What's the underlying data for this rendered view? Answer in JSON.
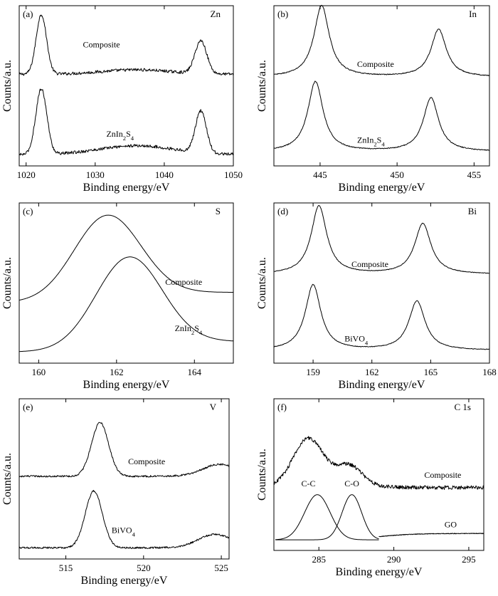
{
  "chart_data": [
    {
      "panel": "(a)",
      "element": "Zn",
      "type": "line",
      "xlabel": "Binding energy/eV",
      "ylabel": "Counts/a.u.",
      "xlim": [
        1019,
        1050
      ],
      "ticks": [
        1020,
        1030,
        1040,
        1050
      ],
      "tick_labels": [
        "1020",
        "1030",
        "1040",
        "1050"
      ],
      "series": [
        {
          "name": "Composite",
          "baseline": 0.54,
          "noise": 0.01,
          "hump": {
            "center": 1036,
            "sigma": 5,
            "amp": 0.03
          },
          "peaks": [
            {
              "center": 1022.2,
              "sigma": 0.75,
              "amp": 0.4
            },
            {
              "center": 1045.3,
              "sigma": 0.85,
              "amp": 0.22
            }
          ],
          "label_x": 1030.9,
          "label_y": 0.72
        },
        {
          "name": "ZnIn2S4",
          "baseline": 0.0,
          "noise": 0.01,
          "hump": {
            "center": 1036,
            "sigma": 5.5,
            "amp": 0.06
          },
          "peaks": [
            {
              "center": 1022.2,
              "sigma": 0.8,
              "amp": 0.44
            },
            {
              "center": 1045.3,
              "sigma": 0.8,
              "amp": 0.28
            }
          ],
          "label_x": 1033.6,
          "label_y": 0.12
        }
      ]
    },
    {
      "panel": "(b)",
      "element": "In",
      "type": "line",
      "xlabel": "Binding energy/eV",
      "ylabel": "Counts/a.u.",
      "xlim": [
        442,
        456
      ],
      "ticks": [
        445,
        450,
        455
      ],
      "tick_labels": [
        "445",
        "450",
        "455"
      ],
      "series": [
        {
          "name": "Composite",
          "baseline": 0.52,
          "noise": 0.003,
          "peaks": [
            {
              "center": 445.1,
              "sigma": 0.6,
              "amp": 0.48,
              "shape": "lor"
            },
            {
              "center": 452.7,
              "sigma": 0.6,
              "amp": 0.32,
              "shape": "lor"
            }
          ],
          "label_x": 448.6,
          "label_y": 0.59
        },
        {
          "name": "ZnIn2S4",
          "baseline": 0.02,
          "noise": 0.003,
          "peaks": [
            {
              "center": 444.7,
              "sigma": 0.6,
              "amp": 0.47,
              "shape": "lor"
            },
            {
              "center": 452.2,
              "sigma": 0.6,
              "amp": 0.36,
              "shape": "lor"
            }
          ],
          "label_x": 448.3,
          "label_y": 0.08
        }
      ]
    },
    {
      "panel": "(c)",
      "element": "S",
      "type": "line",
      "xlabel": "Binding energy/eV",
      "ylabel": "Counts/a.u.",
      "xlim": [
        159.5,
        165
      ],
      "ticks": [
        160,
        162,
        164
      ],
      "tick_labels": [
        "160",
        "162",
        "164"
      ],
      "series": [
        {
          "name": "Composite",
          "baseline_left": 0.33,
          "baseline_right": 0.4,
          "noise": 0,
          "peaks": [
            {
              "center": 161.75,
              "sigma": 0.85,
              "amp": 0.57
            }
          ],
          "label_x": 164.2,
          "label_y": 0.45
        },
        {
          "name": "ZnIn2S4",
          "baseline_left": 0.0,
          "baseline_right": 0.07,
          "noise": 0,
          "peaks": [
            {
              "center": 162.3,
              "sigma": 0.85,
              "amp": 0.6
            }
          ],
          "label_x": 164.2,
          "label_y": 0.14
        }
      ]
    },
    {
      "panel": "(d)",
      "element": "Bi",
      "type": "line",
      "xlabel": "Binding energy/eV",
      "ylabel": "Counts/a.u.",
      "xlim": [
        157,
        168
      ],
      "ticks": [
        159,
        162,
        165,
        168
      ],
      "tick_labels": [
        "159",
        "162",
        "165",
        "168"
      ],
      "series": [
        {
          "name": "Composite",
          "baseline": 0.52,
          "noise": 0.002,
          "peaks": [
            {
              "center": 159.3,
              "sigma": 0.48,
              "amp": 0.46,
              "shape": "lor"
            },
            {
              "center": 164.6,
              "sigma": 0.5,
              "amp": 0.34,
              "shape": "lor"
            }
          ],
          "label_x": 161.9,
          "label_y": 0.57
        },
        {
          "name": "BiVO4",
          "baseline": 0.01,
          "noise": 0.002,
          "peaks": [
            {
              "center": 159.0,
              "sigma": 0.48,
              "amp": 0.44,
              "shape": "lor"
            },
            {
              "center": 164.3,
              "sigma": 0.5,
              "amp": 0.33,
              "shape": "lor"
            }
          ],
          "label_x": 161.2,
          "label_y": 0.07
        }
      ]
    },
    {
      "panel": "(e)",
      "element": "V",
      "type": "line",
      "xlabel": "Binding energy/eV",
      "ylabel": "Counts/a.u.",
      "xlim": [
        512,
        525.5
      ],
      "ticks": [
        515,
        520,
        525
      ],
      "tick_labels": [
        "515",
        "520",
        "525"
      ],
      "series": [
        {
          "name": "Composite",
          "baseline": 0.48,
          "noise": 0.006,
          "hump": {
            "center": 524.9,
            "sigma": 1.1,
            "amp": 0.08
          },
          "peaks": [
            {
              "center": 517.2,
              "sigma": 0.55,
              "amp": 0.36
            }
          ],
          "label_x": 520.2,
          "label_y": 0.56
        },
        {
          "name": "BiVO4",
          "baseline": 0.0,
          "noise": 0.006,
          "hump": {
            "center": 524.6,
            "sigma": 1.1,
            "amp": 0.09
          },
          "peaks": [
            {
              "center": 516.8,
              "sigma": 0.55,
              "amp": 0.38
            }
          ],
          "label_x": 518.7,
          "label_y": 0.1
        }
      ]
    },
    {
      "panel": "(f)",
      "element": "C 1s",
      "type": "line",
      "xlabel": "Binding energy/eV",
      "ylabel": "Counts/a.u.",
      "xlim": [
        282,
        296
      ],
      "ticks": [
        285,
        290,
        295
      ],
      "tick_labels": [
        "285",
        "290",
        "295"
      ],
      "series": [
        {
          "name": "Composite",
          "baseline_left": 0.38,
          "baseline_right": 0.37,
          "noise": 0.014,
          "peaks": [
            {
              "center": 284.3,
              "sigma": 1.0,
              "amp": 0.34
            },
            {
              "center": 287.0,
              "sigma": 0.9,
              "amp": 0.15
            }
          ],
          "label_x": 294.5,
          "label_y": 0.44
        },
        {
          "name": "GO",
          "baseline_left": 0.0,
          "baseline_right": 0.045,
          "noise": 0.002,
          "range": [
            289,
            296
          ],
          "label_x": 294.2,
          "label_y": 0.09
        },
        {
          "name": "C-C",
          "baseline": 0.0,
          "noise": 0,
          "range": [
            282.1,
            289
          ],
          "peaks": [
            {
              "center": 284.9,
              "sigma": 0.85,
              "amp": 0.32
            }
          ],
          "label_x": 284.3,
          "label_y": 0.38
        },
        {
          "name": "C-O",
          "baseline": 0.0,
          "noise": 0,
          "range": [
            282.1,
            289
          ],
          "peaks": [
            {
              "center": 287.2,
              "sigma": 0.65,
              "amp": 0.32
            }
          ],
          "label_x": 287.2,
          "label_y": 0.38
        }
      ]
    }
  ]
}
